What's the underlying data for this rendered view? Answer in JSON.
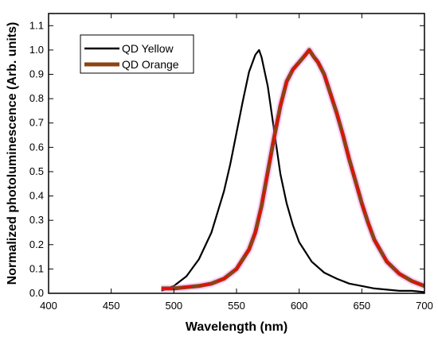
{
  "chart_data": {
    "type": "line",
    "xlabel": "Wavelength (nm)",
    "ylabel": "Normalized photoluminescence (Arb. units)",
    "xlim": [
      400,
      700
    ],
    "ylim": [
      0,
      1.15
    ],
    "x_ticks": [
      400,
      450,
      500,
      550,
      600,
      650,
      700
    ],
    "y_ticks": [
      0.0,
      0.1,
      0.2,
      0.3,
      0.4,
      0.5,
      0.6,
      0.7,
      0.8,
      0.9,
      1.0,
      1.1
    ],
    "y_tick_labels": [
      "0.0",
      "0.1",
      "0.2",
      "0.3",
      "0.4",
      "0.5",
      "0.6",
      "0.7",
      "0.8",
      "0.9",
      "1.0",
      "1.1"
    ],
    "legend_position": "top-left",
    "grid": false,
    "series": [
      {
        "name": "QD Yellow",
        "color": "#000000",
        "x": [
          490,
          500,
          510,
          520,
          530,
          540,
          545,
          550,
          555,
          560,
          565,
          568,
          570,
          575,
          580,
          585,
          590,
          595,
          600,
          610,
          620,
          630,
          640,
          650,
          660,
          670,
          680,
          690,
          700
        ],
        "y": [
          0.01,
          0.03,
          0.07,
          0.14,
          0.25,
          0.42,
          0.53,
          0.66,
          0.79,
          0.91,
          0.98,
          1.0,
          0.97,
          0.85,
          0.67,
          0.49,
          0.37,
          0.28,
          0.21,
          0.13,
          0.085,
          0.06,
          0.04,
          0.03,
          0.02,
          0.015,
          0.01,
          0.01,
          0.005
        ]
      },
      {
        "name": "QD Orange",
        "color": "#8B4513",
        "highlight_color": "#ff0000",
        "x": [
          490,
          500,
          510,
          520,
          530,
          540,
          550,
          560,
          565,
          570,
          575,
          580,
          585,
          590,
          595,
          600,
          605,
          608,
          612,
          615,
          620,
          625,
          630,
          635,
          640,
          645,
          650,
          655,
          660,
          670,
          680,
          690,
          700
        ],
        "y": [
          0.02,
          0.02,
          0.025,
          0.03,
          0.04,
          0.06,
          0.1,
          0.18,
          0.25,
          0.36,
          0.5,
          0.64,
          0.77,
          0.87,
          0.92,
          0.95,
          0.98,
          1.0,
          0.97,
          0.95,
          0.9,
          0.82,
          0.74,
          0.65,
          0.55,
          0.46,
          0.37,
          0.29,
          0.22,
          0.13,
          0.08,
          0.05,
          0.03
        ]
      }
    ]
  }
}
